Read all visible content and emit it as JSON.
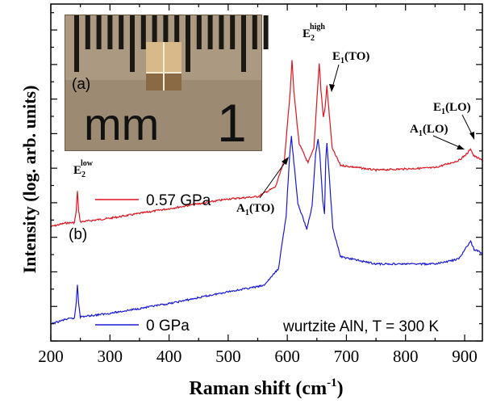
{
  "chart_data": {
    "type": "line",
    "xlabel_main": "Raman shift (cm",
    "xlabel_sup": "-1",
    "xlabel_close": ")",
    "ylabel": "Intensity (log. arb. units)",
    "xlim": [
      200,
      930
    ],
    "x_ticks": [
      "200",
      "300",
      "400",
      "500",
      "600",
      "700",
      "800",
      "900"
    ],
    "y_ticks_labeled": false,
    "grid": false,
    "series": [
      {
        "name": "0.57 GPa",
        "color": "#e0141e",
        "points": [
          [
            200,
            0.055
          ],
          [
            225,
            0.07
          ],
          [
            240,
            0.072
          ],
          [
            243,
            0.12
          ],
          [
            245,
            0.205
          ],
          [
            247,
            0.12
          ],
          [
            250,
            0.075
          ],
          [
            300,
            0.09
          ],
          [
            400,
            0.13
          ],
          [
            500,
            0.17
          ],
          [
            550,
            0.18
          ],
          [
            580,
            0.22
          ],
          [
            595,
            0.33
          ],
          [
            605,
            0.62
          ],
          [
            608,
            0.75
          ],
          [
            611,
            0.62
          ],
          [
            620,
            0.4
          ],
          [
            635,
            0.32
          ],
          [
            645,
            0.38
          ],
          [
            651,
            0.62
          ],
          [
            654,
            0.735
          ],
          [
            657,
            0.62
          ],
          [
            661,
            0.51
          ],
          [
            664,
            0.55
          ],
          [
            667,
            0.64
          ],
          [
            670,
            0.55
          ],
          [
            676,
            0.38
          ],
          [
            690,
            0.31
          ],
          [
            750,
            0.29
          ],
          [
            850,
            0.3
          ],
          [
            890,
            0.33
          ],
          [
            905,
            0.36
          ],
          [
            910,
            0.38
          ],
          [
            915,
            0.35
          ],
          [
            930,
            0.33
          ]
        ]
      },
      {
        "name": "0 GPa",
        "color": "#1a1ad6",
        "points": [
          [
            200,
            -0.35
          ],
          [
            225,
            -0.33
          ],
          [
            240,
            -0.325
          ],
          [
            243,
            -0.26
          ],
          [
            245,
            -0.185
          ],
          [
            247,
            -0.26
          ],
          [
            250,
            -0.32
          ],
          [
            300,
            -0.305
          ],
          [
            400,
            -0.265
          ],
          [
            500,
            -0.215
          ],
          [
            560,
            -0.19
          ],
          [
            585,
            -0.12
          ],
          [
            598,
            0.1
          ],
          [
            604,
            0.35
          ],
          [
            607,
            0.43
          ],
          [
            610,
            0.35
          ],
          [
            618,
            0.15
          ],
          [
            633,
            0.045
          ],
          [
            642,
            0.14
          ],
          [
            648,
            0.36
          ],
          [
            652,
            0.42
          ],
          [
            655,
            0.36
          ],
          [
            660,
            0.16
          ],
          [
            663,
            0.11
          ],
          [
            665,
            0.33
          ],
          [
            667,
            0.4
          ],
          [
            670,
            0.3
          ],
          [
            677,
            0.05
          ],
          [
            690,
            -0.07
          ],
          [
            750,
            -0.1
          ],
          [
            850,
            -0.1
          ],
          [
            890,
            -0.08
          ],
          [
            903,
            -0.03
          ],
          [
            910,
            -0.005
          ],
          [
            916,
            -0.04
          ],
          [
            930,
            -0.055
          ]
        ]
      }
    ],
    "annotations": [
      {
        "main": "E",
        "sub": "2",
        "sup": "low"
      },
      {
        "main": "E",
        "sub": "2",
        "sup": "high"
      },
      {
        "main": "E",
        "sub": "1",
        "suffix": "(TO)"
      },
      {
        "main": "A",
        "sub": "1",
        "suffix": "(TO)"
      },
      {
        "main": "A",
        "sub": "1",
        "suffix": "(LO)"
      },
      {
        "main": "E",
        "sub": "1",
        "suffix": "(LO)"
      }
    ],
    "legend": [
      {
        "label": "0.57 GPa",
        "color": "#e0141e"
      },
      {
        "label": "0 GPa",
        "color": "#1a1ad6"
      }
    ],
    "panel_labels": [
      "(a)",
      "(b)"
    ],
    "note": "wurtzite AlN, T = 300 K",
    "inset": {
      "caption_mm": "mm",
      "caption_number": "1"
    }
  }
}
